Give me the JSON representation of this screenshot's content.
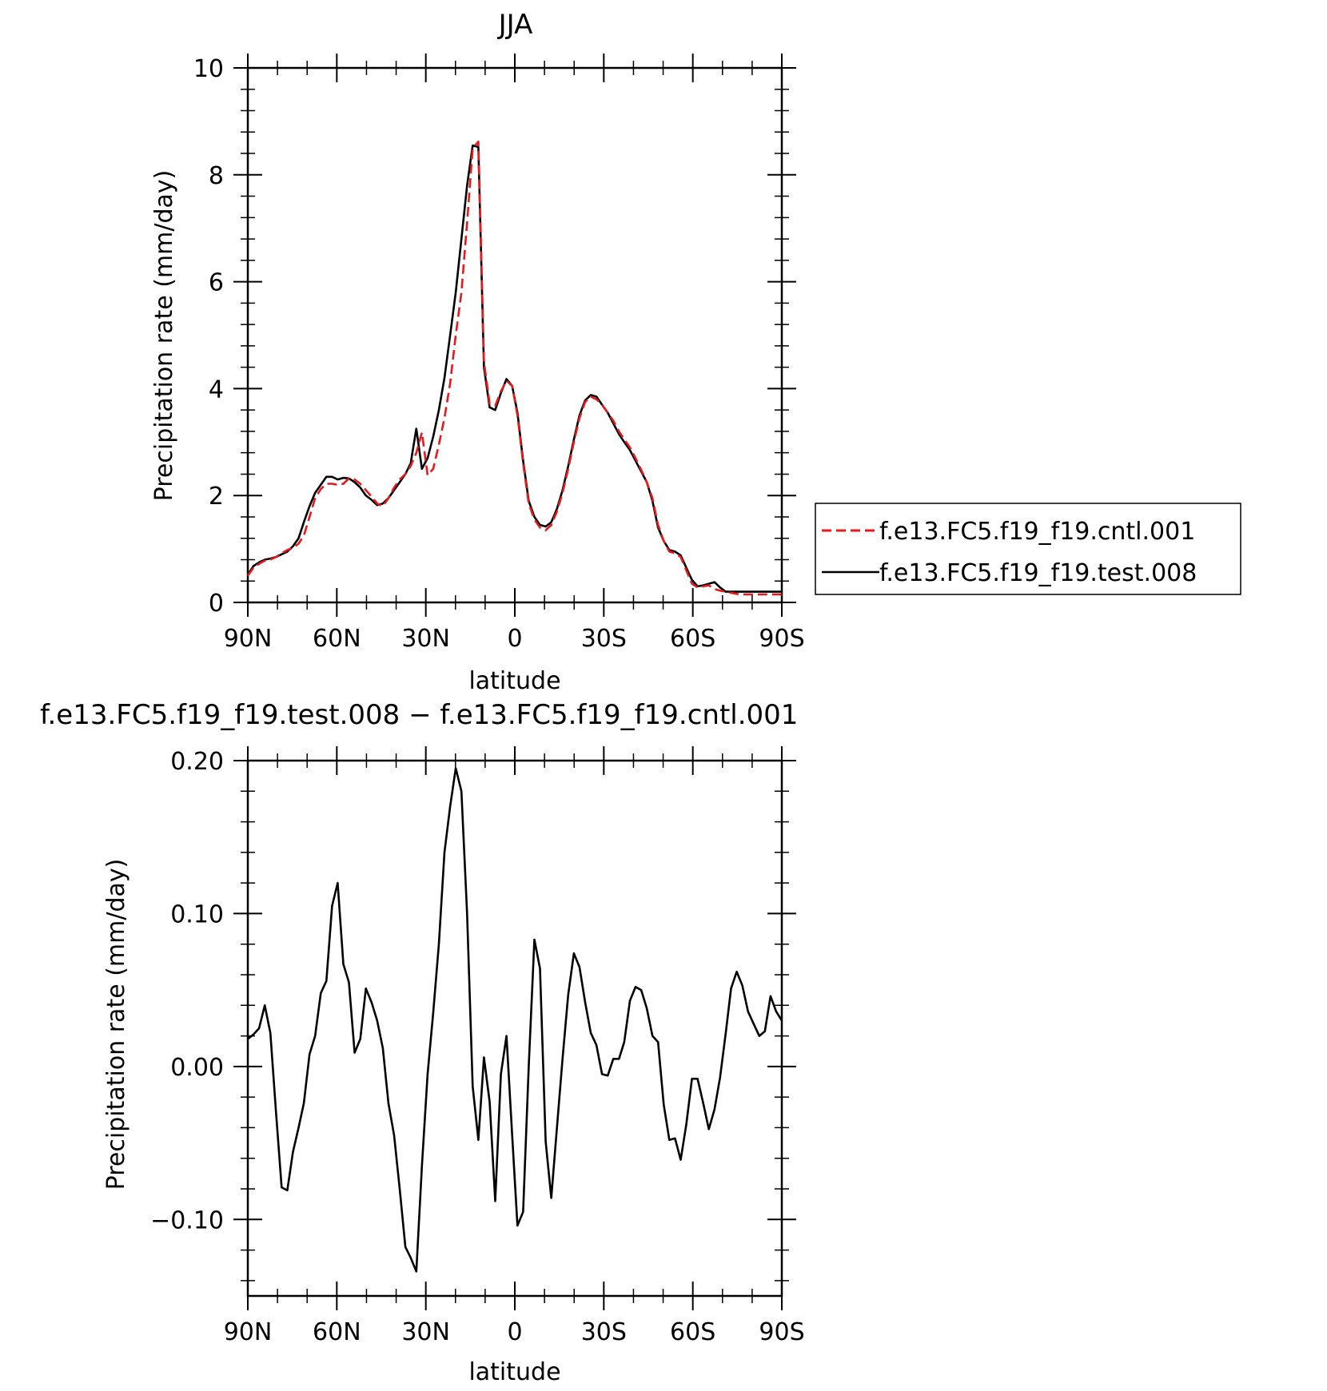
{
  "chart_data": [
    {
      "type": "line",
      "title": "JJA",
      "xlabel": "latitude",
      "ylabel": "Precipitation rate (mm/day)",
      "xlim": [
        90,
        -90
      ],
      "ylim": [
        0,
        10
      ],
      "xticks": [
        90,
        60,
        30,
        0,
        -30,
        -60,
        -90
      ],
      "xtick_labels": [
        "90N",
        "60N",
        "30N",
        "0",
        "30S",
        "60S",
        "90S"
      ],
      "yticks": [
        0,
        2,
        4,
        6,
        8,
        10
      ],
      "ytick_labels": [
        "0",
        "2",
        "4",
        "6",
        "8",
        "10"
      ],
      "legend": "right",
      "grid": false,
      "series": [
        {
          "name": "f.e13.FC5.f19_f19.cntl.001",
          "color": "#e8191c",
          "style": "dashed",
          "x": [
            90,
            88.1,
            86.2,
            84.3,
            82.4,
            80.5,
            78.6,
            76.7,
            74.8,
            72.9,
            71.1,
            69.2,
            67.3,
            65.4,
            63.5,
            61.6,
            59.7,
            57.8,
            55.9,
            54.0,
            52.1,
            50.2,
            48.3,
            46.4,
            44.5,
            42.6,
            40.7,
            38.8,
            36.9,
            35.1,
            33.2,
            31.3,
            29.4,
            27.5,
            25.6,
            23.7,
            21.8,
            19.9,
            18.0,
            16.1,
            14.2,
            12.3,
            10.4,
            8.5,
            6.6,
            4.7,
            2.8,
            0.9,
            -0.9,
            -2.8,
            -4.7,
            -6.6,
            -8.5,
            -10.4,
            -12.3,
            -14.2,
            -16.1,
            -18.0,
            -19.9,
            -21.8,
            -23.7,
            -25.6,
            -27.5,
            -29.4,
            -31.3,
            -33.2,
            -35.1,
            -36.9,
            -38.8,
            -40.7,
            -42.6,
            -44.5,
            -46.4,
            -48.3,
            -50.2,
            -52.1,
            -54.0,
            -55.9,
            -57.8,
            -59.7,
            -61.6,
            -63.5,
            -65.4,
            -67.3,
            -69.2,
            -71.1,
            -72.9,
            -74.8,
            -76.7,
            -78.6,
            -80.5,
            -82.4,
            -84.3,
            -86.2,
            -88.1,
            -90
          ],
          "y": [
            0.5,
            0.65,
            0.72,
            0.78,
            0.8,
            0.85,
            0.92,
            0.98,
            1.02,
            1.1,
            1.25,
            1.6,
            1.95,
            2.12,
            2.22,
            2.22,
            2.2,
            2.22,
            2.32,
            2.3,
            2.22,
            2.1,
            1.98,
            1.85,
            1.8,
            1.95,
            2.15,
            2.3,
            2.4,
            2.55,
            2.8,
            3.18,
            2.38,
            2.5,
            2.95,
            3.45,
            4.1,
            5.0,
            5.8,
            7.1,
            8.5,
            8.62,
            4.5,
            3.72,
            3.68,
            3.95,
            4.15,
            4.05,
            3.5,
            2.6,
            1.85,
            1.55,
            1.4,
            1.35,
            1.45,
            1.7,
            2.05,
            2.5,
            3.0,
            3.45,
            3.75,
            3.85,
            3.8,
            3.7,
            3.55,
            3.4,
            3.2,
            3.05,
            2.9,
            2.7,
            2.48,
            2.25,
            1.95,
            1.45,
            1.15,
            0.95,
            0.92,
            0.85,
            0.6,
            0.35,
            0.28,
            0.3,
            0.32,
            0.25,
            0.22,
            0.2,
            0.18,
            0.16,
            0.15,
            0.15,
            0.15,
            0.15,
            0.15,
            0.15,
            0.15,
            0.15
          ]
        },
        {
          "name": "f.e13.FC5.f19_f19.test.008",
          "color": "#000000",
          "style": "solid",
          "x": [
            90,
            88.1,
            86.2,
            84.3,
            82.4,
            80.5,
            78.6,
            76.7,
            74.8,
            72.9,
            71.1,
            69.2,
            67.3,
            65.4,
            63.5,
            61.6,
            59.7,
            57.8,
            55.9,
            54.0,
            52.1,
            50.2,
            48.3,
            46.4,
            44.5,
            42.6,
            40.7,
            38.8,
            36.9,
            35.1,
            33.2,
            31.3,
            29.4,
            27.5,
            25.6,
            23.7,
            21.8,
            19.9,
            18.0,
            16.1,
            14.2,
            12.3,
            10.4,
            8.5,
            6.6,
            4.7,
            2.8,
            0.9,
            -0.9,
            -2.8,
            -4.7,
            -6.6,
            -8.5,
            -10.4,
            -12.3,
            -14.2,
            -16.1,
            -18.0,
            -19.9,
            -21.8,
            -23.7,
            -25.6,
            -27.5,
            -29.4,
            -31.3,
            -33.2,
            -35.1,
            -36.9,
            -38.8,
            -40.7,
            -42.6,
            -44.5,
            -46.4,
            -48.3,
            -50.2,
            -52.1,
            -54.0,
            -55.9,
            -57.8,
            -59.7,
            -61.6,
            -63.5,
            -65.4,
            -67.3,
            -69.2,
            -71.1,
            -72.9,
            -74.8,
            -76.7,
            -78.6,
            -80.5,
            -82.4,
            -84.3,
            -86.2,
            -88.1,
            -90
          ],
          "y": [
            0.52,
            0.68,
            0.75,
            0.8,
            0.82,
            0.85,
            0.9,
            0.95,
            1.05,
            1.2,
            1.5,
            1.8,
            2.05,
            2.2,
            2.35,
            2.35,
            2.3,
            2.33,
            2.32,
            2.25,
            2.15,
            2.0,
            1.92,
            1.82,
            1.85,
            1.95,
            2.1,
            2.25,
            2.4,
            2.6,
            3.25,
            2.5,
            2.7,
            3.1,
            3.6,
            4.2,
            5.0,
            5.8,
            6.8,
            7.8,
            8.55,
            8.52,
            4.4,
            3.65,
            3.6,
            3.92,
            4.18,
            4.05,
            3.55,
            2.65,
            1.9,
            1.6,
            1.45,
            1.42,
            1.5,
            1.75,
            2.1,
            2.55,
            3.05,
            3.5,
            3.78,
            3.88,
            3.85,
            3.7,
            3.55,
            3.35,
            3.15,
            3.0,
            2.85,
            2.65,
            2.45,
            2.25,
            1.9,
            1.4,
            1.15,
            0.98,
            0.95,
            0.88,
            0.65,
            0.42,
            0.3,
            0.32,
            0.35,
            0.38,
            0.28,
            0.2,
            0.2,
            0.2,
            0.2,
            0.2,
            0.2,
            0.2,
            0.2,
            0.2,
            0.2,
            0.2
          ]
        }
      ]
    },
    {
      "type": "line",
      "title": "f.e13.FC5.f19_f19.test.008 − f.e13.FC5.f19_f19.cntl.001",
      "xlabel": "latitude",
      "ylabel": "Precipitation rate (mm/day)",
      "xlim": [
        90,
        -90
      ],
      "ylim": [
        -0.15,
        0.2
      ],
      "xticks": [
        90,
        60,
        30,
        0,
        -30,
        -60,
        -90
      ],
      "xtick_labels": [
        "90N",
        "60N",
        "30N",
        "0",
        "30S",
        "60S",
        "90S"
      ],
      "yticks": [
        -0.1,
        0.0,
        0.1,
        0.2
      ],
      "ytick_labels": [
        "−0.10",
        "0.00",
        "0.10",
        "0.20"
      ],
      "grid": false,
      "series": [
        {
          "color": "#000000",
          "style": "solid",
          "x": [
            90,
            88.1,
            86.2,
            84.3,
            82.4,
            80.5,
            78.6,
            76.7,
            74.8,
            72.9,
            71.1,
            69.2,
            67.3,
            65.4,
            63.5,
            61.6,
            59.7,
            57.8,
            55.9,
            54.0,
            52.1,
            50.2,
            48.3,
            46.4,
            44.5,
            42.6,
            40.7,
            38.8,
            36.9,
            35.1,
            33.2,
            31.3,
            29.4,
            27.5,
            25.6,
            23.7,
            21.8,
            19.9,
            18.0,
            16.1,
            14.2,
            12.3,
            10.4,
            8.5,
            6.6,
            4.7,
            2.8,
            0.9,
            -0.9,
            -2.8,
            -4.7,
            -6.6,
            -8.5,
            -10.4,
            -12.3,
            -14.2,
            -16.1,
            -18.0,
            -19.9,
            -21.8,
            -23.7,
            -25.6,
            -27.5,
            -29.4,
            -31.3,
            -33.2,
            -35.1,
            -36.9,
            -38.8,
            -40.7,
            -42.6,
            -44.5,
            -46.4,
            -48.3,
            -50.2,
            -52.1,
            -54.0,
            -55.9,
            -57.8,
            -59.7,
            -61.6,
            -63.5,
            -65.4,
            -67.3,
            -69.2,
            -71.1,
            -72.9,
            -74.8,
            -76.7,
            -78.6,
            -80.5,
            -82.4,
            -84.3,
            -86.2,
            -88.1,
            -90
          ],
          "y": [
            0.018,
            0.021,
            0.025,
            0.04,
            0.022,
            -0.03,
            -0.079,
            -0.081,
            -0.056,
            -0.04,
            -0.024,
            0.008,
            0.02,
            0.048,
            0.056,
            0.105,
            0.12,
            0.067,
            0.055,
            0.009,
            0.018,
            0.051,
            0.042,
            0.03,
            0.012,
            -0.024,
            -0.045,
            -0.08,
            -0.118,
            -0.125,
            -0.134,
            -0.065,
            -0.005,
            0.035,
            0.08,
            0.14,
            0.17,
            0.195,
            0.18,
            0.1,
            -0.013,
            -0.048,
            0.006,
            -0.023,
            -0.088,
            -0.005,
            0.02,
            -0.045,
            -0.104,
            -0.095,
            0.0,
            0.083,
            0.064,
            -0.049,
            -0.086,
            -0.04,
            0.005,
            0.047,
            0.074,
            0.065,
            0.042,
            0.022,
            0.014,
            -0.005,
            -0.006,
            0.005,
            0.005,
            0.016,
            0.043,
            0.052,
            0.05,
            0.038,
            0.02,
            0.016,
            -0.025,
            -0.048,
            -0.047,
            -0.061,
            -0.038,
            -0.008,
            -0.008,
            -0.024,
            -0.041,
            -0.028,
            -0.007,
            0.022,
            0.051,
            0.062,
            0.053,
            0.036,
            0.028,
            0.02,
            0.023,
            0.046,
            0.036,
            0.03
          ]
        }
      ]
    }
  ]
}
